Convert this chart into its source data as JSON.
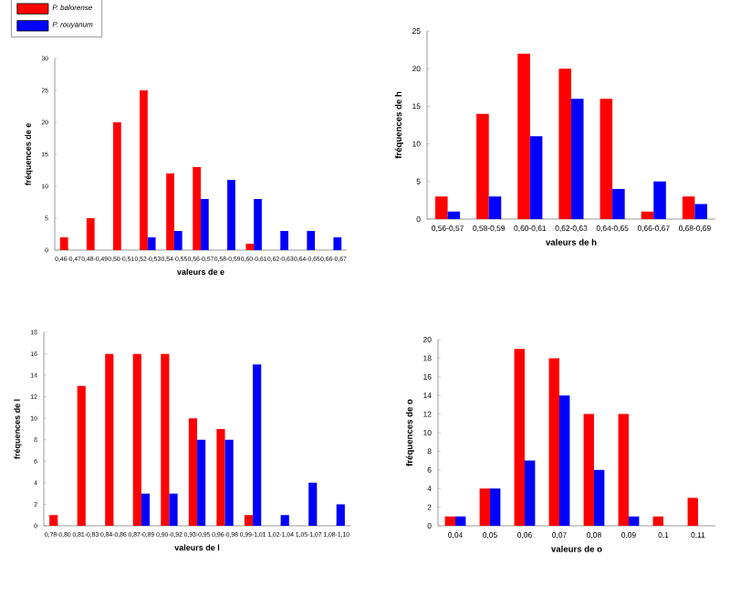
{
  "chart_data": [
    {
      "type": "bar",
      "xlabel": "valeurs de e",
      "ylabel": "fréquences de e",
      "categories": [
        "0,46-0,47",
        "0,48-0,49",
        "0,50-0,51",
        "0,52-0,53",
        "0,54-0,55",
        "0,56-0,57",
        "0,58-0,59",
        "0,60-0,61",
        "0,62-0,63",
        "0,64-0,65",
        "0,66-0,67"
      ],
      "ylim": [
        0,
        30
      ],
      "yticks": [
        0,
        5,
        10,
        15,
        20,
        25,
        30
      ],
      "legend": "top left",
      "series": [
        {
          "name": "*P. balorense*",
          "color": "#ff0000",
          "values": [
            2,
            5,
            20,
            25,
            12,
            13,
            0,
            1,
            0,
            0,
            0
          ]
        },
        {
          "name": "*P. rouyanum*",
          "color": "#0000ff",
          "values": [
            0,
            0,
            0,
            2,
            3,
            8,
            11,
            8,
            3,
            3,
            2
          ]
        }
      ]
    },
    {
      "type": "bar",
      "xlabel": "valeurs de h",
      "ylabel": "fréquences de h",
      "categories": [
        "0,56-0,57",
        "0,58-0,59",
        "0,60-0,61",
        "0,62-0,63",
        "0,64-0,65",
        "0,66-0,67",
        "0,68-0,69"
      ],
      "ylim": [
        0,
        25
      ],
      "yticks": [
        0,
        5,
        10,
        15,
        20,
        25
      ],
      "series": [
        {
          "color": "#ff0000",
          "values": [
            3,
            14,
            22,
            20,
            16,
            1,
            3
          ]
        },
        {
          "color": "#0000ff",
          "values": [
            1,
            3,
            11,
            16,
            4,
            5,
            2
          ]
        }
      ]
    },
    {
      "type": "bar",
      "xlabel": "valeurs de l",
      "ylabel": "fréquences de l",
      "categories": [
        "0,78-0,80",
        "0,81-0,83",
        "0,84-0,86",
        "0,87-0,89",
        "0,90-0,92",
        "0,93-0,95",
        "0,96-0,98",
        "0,99-1,01",
        "1,02-1,04",
        "1,05-1,07",
        "1,08-1,10"
      ],
      "ylim": [
        0,
        18
      ],
      "yticks": [
        0,
        2,
        4,
        6,
        8,
        10,
        12,
        14,
        16,
        18
      ],
      "series": [
        {
          "color": "#ff0000",
          "values": [
            1,
            13,
            16,
            16,
            16,
            10,
            9,
            1,
            0,
            0,
            0
          ]
        },
        {
          "color": "#0000ff",
          "values": [
            0,
            0,
            0,
            3,
            3,
            8,
            8,
            15,
            1,
            4,
            2
          ]
        }
      ]
    },
    {
      "type": "bar",
      "xlabel": "valeurs de o",
      "ylabel": "fréquences de o",
      "categories": [
        "0,04",
        "0,05",
        "0,06",
        "0,07",
        "0,08",
        "0,09",
        "0,1",
        "0,11"
      ],
      "ylim": [
        0,
        20
      ],
      "yticks": [
        0,
        2,
        4,
        6,
        8,
        10,
        12,
        14,
        16,
        18,
        20
      ],
      "series": [
        {
          "color": "#ff0000",
          "values": [
            1,
            4,
            19,
            18,
            12,
            12,
            1,
            3
          ]
        },
        {
          "color": "#0000ff",
          "values": [
            1,
            4,
            7,
            14,
            6,
            1,
            0,
            0
          ]
        }
      ]
    }
  ]
}
